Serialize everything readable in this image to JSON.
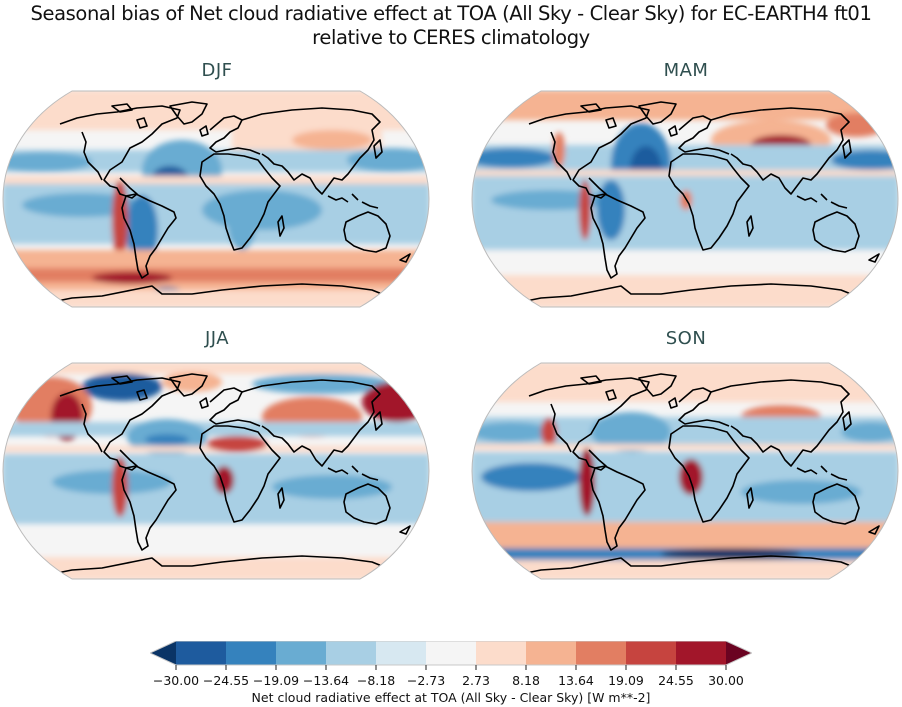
{
  "figure": {
    "title_line1": "Seasonal bias of Net cloud radiative effect at TOA (All Sky - Clear Sky) for EC-EARTH4 ft01",
    "title_line2": "relative to CERES climatology"
  },
  "panels": [
    {
      "id": "djf",
      "title": "DJF"
    },
    {
      "id": "mam",
      "title": "MAM"
    },
    {
      "id": "jja",
      "title": "JJA"
    },
    {
      "id": "son",
      "title": "SON"
    }
  ],
  "colorbar": {
    "label": "Net cloud radiative effect at TOA (All Sky - Clear Sky) [W m**-2]",
    "ticks": [
      "−30.00",
      "−24.55",
      "−19.09",
      "−13.64",
      "−8.18",
      "−2.73",
      "2.73",
      "8.18",
      "13.64",
      "19.09",
      "24.55",
      "30.00"
    ],
    "colors": [
      "#1e5b9e",
      "#3582bd",
      "#69acd2",
      "#a8cfe4",
      "#d7e8f1",
      "#f5f5f5",
      "#fcdccb",
      "#f5b392",
      "#e27e62",
      "#c6443f",
      "#a2162a"
    ],
    "under_color": "#0a3466",
    "over_color": "#6a0321"
  },
  "chart_data": {
    "type": "heatmap",
    "title": "Seasonal bias of Net cloud radiative effect at TOA (All Sky - Clear Sky) for EC-EARTH4 ft01 relative to CERES climatology",
    "subplots": [
      "DJF",
      "MAM",
      "JJA",
      "SON"
    ],
    "projection": "Robinson (global)",
    "colorbar_label": "Net cloud radiative effect at TOA (All Sky - Clear Sky) [W m**-2]",
    "levels": [
      -30.0,
      -24.55,
      -19.09,
      -13.64,
      -8.18,
      -2.73,
      2.73,
      8.18,
      13.64,
      19.09,
      24.55,
      30.0
    ],
    "vmin": -30.0,
    "vmax": 30.0,
    "extend": "both",
    "colormap": "RdBu_r",
    "notable_features": {
      "DJF": "Strong positive bias (red) along Southern Ocean 40-60S and off western South America; negative bias (blue) in tropical/subtropical oceans, deepest in tropical North Atlantic",
      "MAM": "Strong negative bias in central Atlantic; positive bias over central Asia / Tibet and off western Americas",
      "JJA": "Strong positive bias in NE Pacific stratocumulus, off Peru, off Angola, Sahel and NW Pacific; negative bias over Arctic/N Canada and tropical oceans",
      "SON": "Strong positive bias off Peru and Angola; strong negative band near Antarctic coast (~60S); positive Southern Ocean 40-50S"
    }
  }
}
